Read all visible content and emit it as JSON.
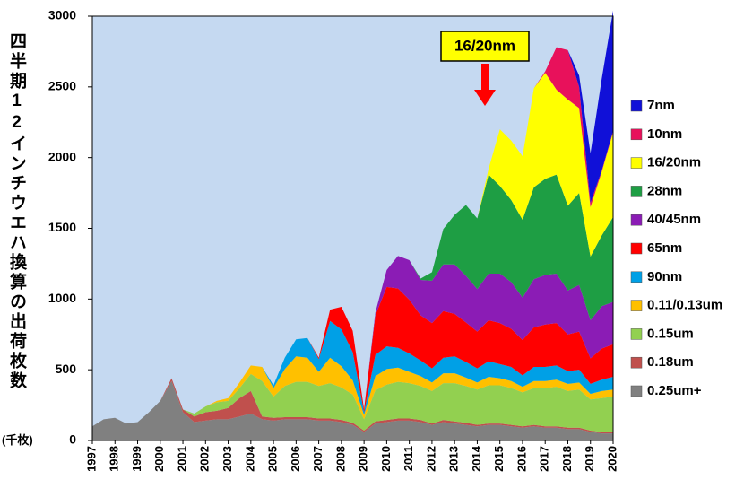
{
  "chart_data": {
    "type": "stacked-area",
    "y_label": "四半期12インチウエハ換算の出荷枚数",
    "y_unit": "(千枚)",
    "annotation": "16/20nm",
    "x": [
      1997,
      1997.5,
      1998,
      1998.5,
      1999,
      1999.5,
      2000,
      2000.5,
      2001,
      2001.5,
      2002,
      2002.5,
      2003,
      2003.5,
      2004,
      2004.5,
      2005,
      2005.5,
      2006,
      2006.5,
      2007,
      2007.5,
      2008,
      2008.5,
      2009,
      2009.5,
      2010,
      2010.5,
      2011,
      2011.5,
      2012,
      2012.5,
      2013,
      2013.5,
      2014,
      2014.5,
      2015,
      2015.5,
      2016,
      2016.5,
      2017,
      2017.5,
      2018,
      2018.5,
      2019,
      2019.5,
      2020
    ],
    "xlim": [
      1997,
      2020
    ],
    "xticks": [
      1997,
      1998,
      1999,
      2000,
      2001,
      2002,
      2003,
      2004,
      2005,
      2006,
      2007,
      2008,
      2009,
      2010,
      2011,
      2012,
      2013,
      2014,
      2015,
      2016,
      2017,
      2018,
      2019,
      2020
    ],
    "ylim": [
      0,
      3000
    ],
    "yticks": [
      0,
      500,
      1000,
      1500,
      2000,
      2500,
      3000
    ],
    "background": "#c5d9f1",
    "series": [
      {
        "name": "0.25um+",
        "color": "#808080",
        "values": [
          100,
          150,
          160,
          120,
          130,
          200,
          280,
          420,
          200,
          130,
          140,
          150,
          150,
          170,
          190,
          150,
          140,
          150,
          150,
          150,
          140,
          140,
          130,
          110,
          60,
          120,
          130,
          140,
          140,
          130,
          110,
          130,
          120,
          110,
          100,
          110,
          110,
          100,
          90,
          100,
          90,
          90,
          80,
          80,
          60,
          50,
          50
        ]
      },
      {
        "name": "0.18um",
        "color": "#c0504d",
        "values": [
          0,
          0,
          0,
          0,
          0,
          0,
          0,
          20,
          20,
          40,
          60,
          60,
          80,
          130,
          160,
          20,
          20,
          15,
          15,
          15,
          15,
          15,
          15,
          15,
          10,
          15,
          15,
          15,
          15,
          15,
          10,
          15,
          15,
          15,
          10,
          10,
          10,
          10,
          10,
          10,
          10,
          10,
          10,
          10,
          10,
          10,
          10
        ]
      },
      {
        "name": "0.15um",
        "color": "#92d050",
        "values": [
          0,
          0,
          0,
          0,
          0,
          0,
          0,
          0,
          0,
          20,
          40,
          60,
          50,
          70,
          120,
          250,
          150,
          220,
          250,
          250,
          230,
          250,
          230,
          200,
          80,
          220,
          250,
          260,
          250,
          240,
          230,
          260,
          270,
          260,
          250,
          270,
          270,
          260,
          240,
          260,
          270,
          280,
          260,
          270,
          220,
          240,
          250
        ]
      },
      {
        "name": "0.11/0.13um",
        "color": "#ffc000",
        "values": [
          0,
          0,
          0,
          0,
          0,
          0,
          0,
          0,
          0,
          0,
          0,
          10,
          20,
          40,
          60,
          100,
          60,
          120,
          180,
          170,
          100,
          180,
          150,
          100,
          30,
          100,
          110,
          100,
          80,
          70,
          60,
          70,
          70,
          60,
          50,
          60,
          50,
          50,
          40,
          50,
          50,
          50,
          50,
          50,
          40,
          50,
          50
        ]
      },
      {
        "name": "90nm",
        "color": "#00a0e6",
        "values": [
          0,
          0,
          0,
          0,
          0,
          0,
          0,
          0,
          0,
          0,
          0,
          0,
          0,
          0,
          0,
          0,
          20,
          80,
          120,
          140,
          90,
          260,
          260,
          200,
          20,
          150,
          160,
          140,
          130,
          110,
          100,
          110,
          120,
          110,
          100,
          110,
          100,
          100,
          80,
          100,
          100,
          100,
          90,
          90,
          70,
          80,
          90
        ]
      },
      {
        "name": "65nm",
        "color": "#ff0000",
        "values": [
          0,
          0,
          0,
          0,
          0,
          0,
          0,
          0,
          0,
          0,
          0,
          0,
          0,
          0,
          0,
          0,
          0,
          0,
          0,
          0,
          10,
          80,
          160,
          150,
          20,
          280,
          420,
          420,
          380,
          320,
          320,
          330,
          300,
          280,
          260,
          290,
          290,
          270,
          250,
          280,
          300,
          300,
          260,
          270,
          180,
          220,
          230
        ]
      },
      {
        "name": "40/45nm",
        "color": "#8b1cb5",
        "values": [
          0,
          0,
          0,
          0,
          0,
          0,
          0,
          0,
          0,
          0,
          0,
          0,
          0,
          0,
          0,
          0,
          0,
          0,
          0,
          0,
          0,
          0,
          0,
          0,
          0,
          20,
          120,
          230,
          280,
          250,
          300,
          330,
          350,
          330,
          300,
          330,
          350,
          330,
          300,
          340,
          350,
          350,
          310,
          330,
          270,
          300,
          300
        ]
      },
      {
        "name": "28nm",
        "color": "#1e9e44",
        "values": [
          0,
          0,
          0,
          0,
          0,
          0,
          0,
          0,
          0,
          0,
          0,
          0,
          0,
          0,
          0,
          0,
          0,
          0,
          0,
          0,
          0,
          0,
          0,
          0,
          0,
          0,
          0,
          0,
          0,
          10,
          60,
          250,
          350,
          500,
          500,
          700,
          620,
          580,
          550,
          650,
          680,
          700,
          600,
          650,
          450,
          500,
          600
        ]
      },
      {
        "name": "16/20nm",
        "color": "#ffff00",
        "values": [
          0,
          0,
          0,
          0,
          0,
          0,
          0,
          0,
          0,
          0,
          0,
          0,
          0,
          0,
          0,
          0,
          0,
          0,
          0,
          0,
          0,
          0,
          0,
          0,
          0,
          0,
          0,
          0,
          0,
          0,
          0,
          0,
          0,
          0,
          0,
          40,
          400,
          420,
          450,
          700,
          750,
          600,
          750,
          600,
          350,
          450,
          600
        ]
      },
      {
        "name": "10nm",
        "color": "#e8115b",
        "values": [
          0,
          0,
          0,
          0,
          0,
          0,
          0,
          0,
          0,
          0,
          0,
          0,
          0,
          0,
          0,
          0,
          0,
          0,
          0,
          0,
          0,
          0,
          0,
          0,
          0,
          0,
          0,
          0,
          0,
          0,
          0,
          0,
          0,
          0,
          0,
          0,
          0,
          0,
          0,
          0,
          10,
          300,
          350,
          150,
          30,
          10,
          10
        ]
      },
      {
        "name": "7nm",
        "color": "#1010d8",
        "values": [
          0,
          0,
          0,
          0,
          0,
          0,
          0,
          0,
          0,
          0,
          0,
          0,
          0,
          0,
          0,
          0,
          0,
          0,
          0,
          0,
          0,
          0,
          0,
          0,
          0,
          0,
          0,
          0,
          0,
          0,
          0,
          0,
          0,
          0,
          0,
          0,
          0,
          0,
          0,
          0,
          0,
          0,
          0,
          80,
          350,
          650,
          850
        ]
      }
    ]
  }
}
